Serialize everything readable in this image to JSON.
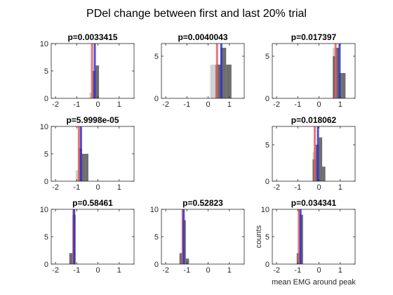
{
  "suptitle": "PDel change between first and last 20% trial",
  "colors": {
    "bar_early": "#cfcfcf",
    "bar_late": "#555555",
    "line_red": "#e06060",
    "line_blue": "#3030d0"
  },
  "chart_data": [
    {
      "type": "bar",
      "title": "p=0.0033415",
      "xlim": [
        -2.2,
        1.7
      ],
      "ylim": [
        0,
        10
      ],
      "xticks": [
        "-2",
        "-1",
        "0",
        "1"
      ],
      "yticks": [
        "0",
        "5",
        "10"
      ],
      "bin_width": 0.15,
      "series": [
        {
          "bins": [
            -0.4
          ],
          "values": [
            1
          ]
        },
        {
          "bins": [
            -0.25,
            -0.1
          ],
          "values": [
            5,
            6
          ]
        }
      ],
      "red_line": -0.28,
      "blue_line": -0.15,
      "xlabel": "",
      "ylabel": ""
    },
    {
      "type": "bar",
      "title": "p=0.0040043",
      "xlim": [
        -2.2,
        1.7
      ],
      "ylim": [
        0,
        6.5
      ],
      "xticks": [
        "-2",
        "-1",
        "0",
        "1"
      ],
      "yticks": [
        "0",
        "5"
      ],
      "bin_width": 0.25,
      "series": [
        {
          "bins": [
            0.1,
            0.35
          ],
          "values": [
            4,
            4
          ]
        },
        {
          "bins": [
            0.35,
            0.6,
            0.85
          ],
          "values": [
            4,
            6,
            4
          ]
        }
      ],
      "red_line": 0.42,
      "blue_line": 0.62,
      "xlabel": "",
      "ylabel": ""
    },
    {
      "type": "bar",
      "title": "p=0.017397",
      "xlim": [
        -2.2,
        1.7
      ],
      "ylim": [
        0,
        6.5
      ],
      "xticks": [
        "-2",
        "-1",
        "0",
        "1"
      ],
      "yticks": [
        "0",
        "5"
      ],
      "bin_width": 0.15,
      "series": [
        {
          "bins": [
            0.65,
            0.8
          ],
          "values": [
            6,
            6
          ]
        },
        {
          "bins": [
            0.65,
            0.8,
            0.95,
            1.1
          ],
          "values": [
            5,
            6,
            3,
            3
          ]
        }
      ],
      "red_line": 0.78,
      "blue_line": 0.97,
      "xlabel": "",
      "ylabel": ""
    },
    {
      "type": "bar",
      "title": "p=5.9998e-05",
      "xlim": [
        -2.2,
        1.7
      ],
      "ylim": [
        0,
        10
      ],
      "xticks": [
        "-2",
        "-1",
        "0",
        "1"
      ],
      "yticks": [
        "0",
        "5",
        "10"
      ],
      "bin_width": 0.15,
      "series": [
        {
          "bins": [
            -1.05,
            -0.9
          ],
          "values": [
            2,
            4
          ]
        },
        {
          "bins": [
            -0.9,
            -0.75,
            -0.6
          ],
          "values": [
            6,
            5,
            5
          ]
        }
      ],
      "red_line": -0.9,
      "blue_line": -0.8,
      "xlabel": "",
      "ylabel": ""
    },
    null,
    {
      "type": "bar",
      "title": "p=0.018062",
      "xlim": [
        -2.2,
        1.7
      ],
      "ylim": [
        0,
        7.5
      ],
      "xticks": [
        "-2",
        "-1",
        "0",
        "1"
      ],
      "yticks": [
        "0",
        "5"
      ],
      "bin_width": 0.15,
      "series": [
        {
          "bins": [
            -0.3,
            -0.15
          ],
          "values": [
            4,
            5
          ]
        },
        {
          "bins": [
            -0.3,
            -0.15,
            0.0,
            0.15
          ],
          "values": [
            3,
            5,
            6,
            2
          ]
        }
      ],
      "red_line": -0.2,
      "blue_line": -0.05,
      "xlabel": "",
      "ylabel": ""
    },
    {
      "type": "bar",
      "title": "p=0.58461",
      "xlim": [
        -2.2,
        1.7
      ],
      "ylim": [
        0,
        10
      ],
      "xticks": [
        "-2",
        "-1",
        "0",
        "1"
      ],
      "yticks": [
        "0",
        "5",
        "10"
      ],
      "bin_width": 0.15,
      "series": [
        {
          "bins": [],
          "values": []
        },
        {
          "bins": [
            -1.35,
            -1.2
          ],
          "values": [
            2,
            9
          ]
        }
      ],
      "red_line": -1.15,
      "blue_line": -1.12,
      "xlabel": "",
      "ylabel": ""
    },
    {
      "type": "bar",
      "title": "p=0.52823",
      "xlim": [
        -2.2,
        1.7
      ],
      "ylim": [
        0,
        10
      ],
      "xticks": [
        "-2",
        "-1",
        "0",
        "1"
      ],
      "yticks": [
        "0",
        "5",
        "10"
      ],
      "bin_width": 0.15,
      "series": [
        {
          "bins": [],
          "values": []
        },
        {
          "bins": [
            -1.35,
            -1.2,
            -1.05
          ],
          "values": [
            2,
            8,
            1
          ]
        }
      ],
      "red_line": -1.2,
      "blue_line": -1.15,
      "xlabel": "",
      "ylabel": ""
    },
    {
      "type": "bar",
      "title": "p=0.034341",
      "xlim": [
        -2.2,
        1.7
      ],
      "ylim": [
        0,
        10
      ],
      "xticks": [
        "-2",
        "-1",
        "0",
        "1"
      ],
      "yticks": [
        "0",
        "5",
        "10"
      ],
      "bin_width": 0.15,
      "series": [
        {
          "bins": [],
          "values": []
        },
        {
          "bins": [
            -1.05,
            -0.9
          ],
          "values": [
            2,
            9
          ]
        }
      ],
      "red_line": -0.95,
      "blue_line": -0.87,
      "xlabel": "mean EMG around peak",
      "ylabel": "counts"
    }
  ]
}
